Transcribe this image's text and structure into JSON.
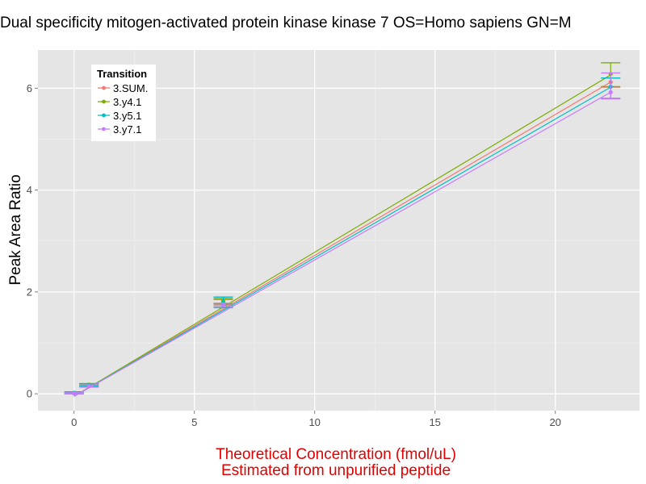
{
  "chart_data": {
    "type": "line",
    "title": "Dual specificity mitogen-activated protein kinase kinase 7 OS=Homo sapiens GN=M",
    "xlabel_lines": [
      "Theoretical Concentration (fmol/uL)",
      "Estimated from unpurified peptide"
    ],
    "ylabel": "Peak Area Ratio",
    "xlim": [
      -1.5,
      23.5
    ],
    "ylim": [
      -0.33,
      6.75
    ],
    "x_ticks": [
      0,
      5,
      10,
      15,
      20
    ],
    "x_tick_labels": [
      "0",
      "5",
      "10",
      "15",
      "20"
    ],
    "y_ticks": [
      0,
      2,
      4,
      6
    ],
    "y_tick_labels": [
      "0",
      "2",
      "4",
      "6"
    ],
    "grid": true,
    "legend": {
      "title": "Transition",
      "position": "top-left"
    },
    "x": [
      0,
      0.62,
      6.2,
      22.3
    ],
    "series": [
      {
        "name": "3.SUM.",
        "color": "#F8766D",
        "values": [
          0.01,
          0.17,
          1.8,
          6.12
        ],
        "err_low": [
          0.0,
          0.15,
          1.75,
          6.02
        ],
        "err_high": [
          0.03,
          0.19,
          1.85,
          6.2
        ],
        "fit": [
          -0.05,
          6.12
        ]
      },
      {
        "name": "3.y4.1",
        "color": "#7CAE00",
        "values": [
          0.01,
          0.18,
          1.82,
          6.28
        ],
        "err_low": [
          0.0,
          0.16,
          1.77,
          6.03
        ],
        "err_high": [
          0.03,
          0.2,
          1.87,
          6.5
        ],
        "fit": [
          -0.05,
          6.26
        ]
      },
      {
        "name": "3.y5.1",
        "color": "#00BFC4",
        "values": [
          0.02,
          0.17,
          1.78,
          6.03
        ],
        "err_low": [
          0.0,
          0.15,
          1.69,
          5.8
        ],
        "err_high": [
          0.04,
          0.2,
          1.9,
          6.2
        ],
        "fit": [
          -0.05,
          6.02
        ]
      },
      {
        "name": "3.y7.1",
        "color": "#C77CFF",
        "values": [
          0.01,
          0.15,
          1.74,
          5.92
        ],
        "err_low": [
          0.0,
          0.13,
          1.72,
          5.79
        ],
        "err_high": [
          0.02,
          0.17,
          1.78,
          6.3
        ],
        "fit": [
          -0.05,
          5.92
        ]
      }
    ],
    "colors": {
      "title_color": "#000000",
      "xlabel_color": "#e00000",
      "panel_bg": "#e5e5e5",
      "grid_color": "#ffffff"
    }
  }
}
